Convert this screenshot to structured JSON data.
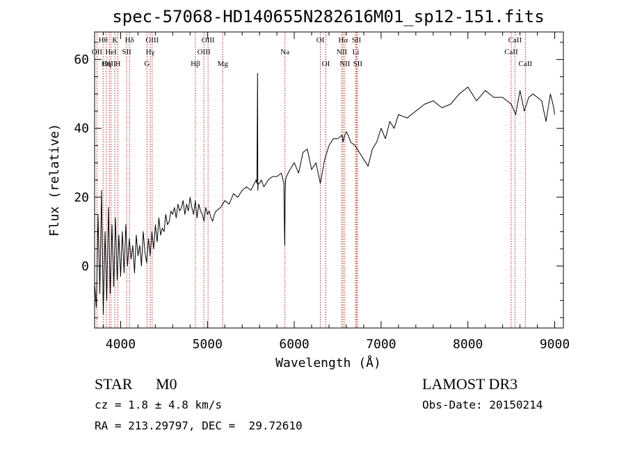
{
  "chart_data": {
    "type": "line",
    "title": "spec-57068-HD140655N282616M01_sp12-151.fits",
    "xlabel": "Wavelength (Å)",
    "ylabel": "Flux (relative)",
    "xlim": [
      3700,
      9100
    ],
    "ylim": [
      -18,
      68
    ],
    "xticks": [
      4000,
      5000,
      6000,
      7000,
      8000,
      9000
    ],
    "xtick_labels": [
      "4000",
      "5000",
      "6000",
      "7000",
      "8000",
      "9000"
    ],
    "yticks": [
      0,
      20,
      40,
      60
    ],
    "ytick_labels": [
      "0",
      "20",
      "40",
      "60"
    ],
    "series": [
      {
        "name": "spectrum",
        "x": [
          3700,
          3720,
          3740,
          3760,
          3780,
          3800,
          3820,
          3840,
          3860,
          3880,
          3900,
          3920,
          3940,
          3960,
          3980,
          4000,
          4020,
          4040,
          4060,
          4080,
          4100,
          4120,
          4140,
          4160,
          4180,
          4200,
          4220,
          4240,
          4260,
          4280,
          4300,
          4320,
          4340,
          4360,
          4380,
          4400,
          4420,
          4440,
          4460,
          4480,
          4500,
          4520,
          4540,
          4560,
          4580,
          4600,
          4620,
          4640,
          4660,
          4680,
          4700,
          4720,
          4740,
          4760,
          4780,
          4800,
          4820,
          4840,
          4860,
          4880,
          4900,
          4920,
          4940,
          4960,
          4980,
          5000,
          5020,
          5040,
          5060,
          5080,
          5100,
          5150,
          5200,
          5250,
          5300,
          5350,
          5400,
          5450,
          5500,
          5540,
          5560,
          5570,
          5577,
          5580,
          5585,
          5600,
          5620,
          5650,
          5700,
          5750,
          5800,
          5850,
          5880,
          5890,
          5893,
          5896,
          5900,
          5910,
          5950,
          6000,
          6050,
          6100,
          6150,
          6200,
          6250,
          6300,
          6350,
          6400,
          6450,
          6500,
          6550,
          6562,
          6580,
          6600,
          6620,
          6650,
          6700,
          6750,
          6800,
          6850,
          6900,
          6950,
          7000,
          7050,
          7100,
          7150,
          7200,
          7300,
          7400,
          7500,
          7600,
          7700,
          7800,
          7900,
          8000,
          8100,
          8200,
          8300,
          8400,
          8500,
          8550,
          8600,
          8650,
          8700,
          8750,
          8800,
          8850,
          8900,
          8950,
          8980,
          9000
        ],
        "values": [
          -5,
          -12,
          15,
          -8,
          22,
          -14,
          10,
          -10,
          17,
          -8,
          12,
          -6,
          14,
          -4,
          9,
          -3,
          10,
          -2,
          12,
          0,
          8,
          2,
          6,
          -2,
          9,
          3,
          6,
          0,
          10,
          4,
          1,
          8,
          3,
          10,
          5,
          12,
          7,
          14,
          9,
          11,
          10,
          15,
          12,
          13,
          16,
          15,
          17,
          14,
          18,
          16,
          17,
          19,
          15,
          18,
          16,
          20,
          17,
          15,
          19,
          14,
          18,
          16,
          15,
          13,
          17,
          15,
          16,
          14,
          13,
          15,
          16,
          17,
          19,
          18,
          21,
          20,
          22,
          23,
          22,
          24,
          25,
          24,
          56,
          22,
          24,
          24,
          25,
          23,
          25,
          26,
          26,
          27,
          24,
          6,
          14,
          22,
          25,
          26,
          28,
          30,
          27,
          33,
          34,
          28,
          30,
          24,
          31,
          35,
          37,
          37,
          38,
          36,
          38,
          39,
          38,
          36,
          35,
          33,
          31,
          29,
          34,
          36,
          40,
          37,
          42,
          40,
          44,
          43,
          45,
          47,
          48,
          46,
          47,
          50,
          52,
          48,
          51,
          49,
          49,
          47,
          44,
          51,
          45,
          49,
          50,
          49,
          48,
          42,
          50,
          47,
          44
        ]
      }
    ],
    "lines": [
      {
        "name": "Hθ",
        "x": 3798,
        "row": 0
      },
      {
        "name": "OII",
        "x": 3727,
        "row": 1
      },
      {
        "name": "Hη",
        "x": 3835,
        "row": 2
      },
      {
        "name": "OIII",
        "x": 3869,
        "row": 2
      },
      {
        "name": "HeI",
        "x": 3889,
        "row": 1
      },
      {
        "name": "K",
        "x": 3934,
        "row": 0
      },
      {
        "name": "H",
        "x": 3968,
        "row": 2
      },
      {
        "name": "SII",
        "x": 4069,
        "row": 1
      },
      {
        "name": "Hδ",
        "x": 4102,
        "row": 0
      },
      {
        "name": "G",
        "x": 4304,
        "row": 2
      },
      {
        "name": "OIII",
        "x": 4363,
        "row": 0
      },
      {
        "name": "Hγ",
        "x": 4341,
        "row": 1
      },
      {
        "name": "Hβ",
        "x": 4861,
        "row": 2
      },
      {
        "name": "OIII",
        "x": 4959,
        "row": 1
      },
      {
        "name": "OIII",
        "x": 5007,
        "row": 0
      },
      {
        "name": "Mg",
        "x": 5175,
        "row": 2
      },
      {
        "name": "Na",
        "x": 5893,
        "row": 1
      },
      {
        "name": "OI",
        "x": 6300,
        "row": 0
      },
      {
        "name": "OI",
        "x": 6364,
        "row": 2
      },
      {
        "name": "NII",
        "x": 6548,
        "row": 1
      },
      {
        "name": "Hα",
        "x": 6563,
        "row": 0
      },
      {
        "name": "NII",
        "x": 6583,
        "row": 2
      },
      {
        "name": "Li",
        "x": 6708,
        "row": 1
      },
      {
        "name": "SII",
        "x": 6716,
        "row": 0
      },
      {
        "name": "SII",
        "x": 6731,
        "row": 2
      },
      {
        "name": "CaII",
        "x": 8498,
        "row": 1
      },
      {
        "name": "CaII",
        "x": 8542,
        "row": 0
      },
      {
        "name": "CaII",
        "x": 8662,
        "row": 2
      }
    ]
  },
  "info": {
    "class": "STAR",
    "subclass": "M0",
    "survey": "LAMOST DR3",
    "cz": "cz = 1.8 ± 4.8 km/s",
    "obs_date": "Obs-Date: 20150214",
    "coords": "RA = 213.29797, DEC =  29.72610"
  },
  "colors": {
    "line_marker": "#b22222",
    "spectrum": "#000000"
  }
}
